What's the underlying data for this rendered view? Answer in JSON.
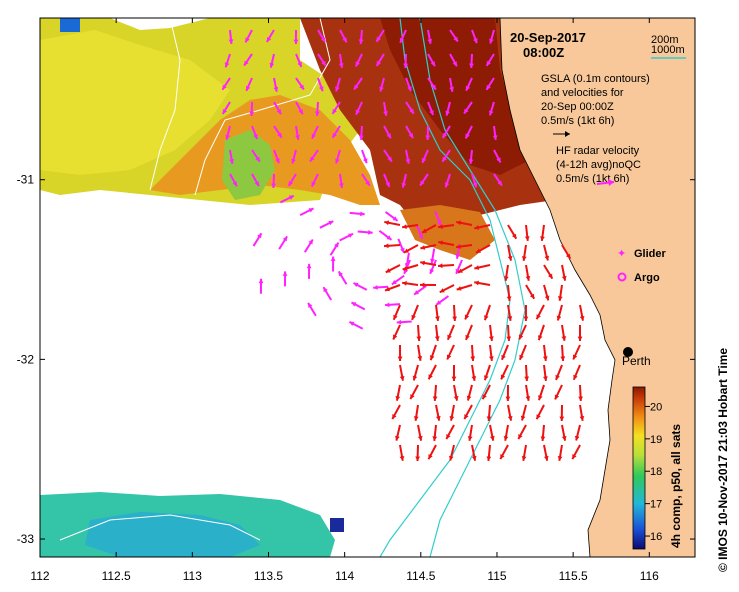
{
  "title": {
    "date": "20-Sep-2017",
    "time": "08:00Z"
  },
  "depth_legend": {
    "shallow": "200m",
    "deep": "1000m"
  },
  "gsla_legend": {
    "line1": "GSLA (0.1m contours)",
    "line2": "and velocities for",
    "line3": "20-Sep 00:00Z",
    "scale": "0.5m/s (1kt 6h)"
  },
  "hf_legend": {
    "line1": "HF radar velocity",
    "line2": "(4-12h avg)noQC",
    "scale": "0.5m/s (1kt 6h)"
  },
  "markers": {
    "glider": "Glider",
    "argo": "Argo"
  },
  "place": {
    "city": "Perth"
  },
  "colorbar": {
    "label": "4h comp, p50, all sats",
    "ticks": [
      "16",
      "17",
      "18",
      "19",
      "20"
    ],
    "range": [
      15.6,
      20.6
    ]
  },
  "axes": {
    "x_ticks": [
      "112",
      "112.5",
      "113",
      "113.5",
      "114",
      "114.5",
      "115",
      "115.5",
      "116"
    ],
    "y_ticks": [
      "-31",
      "-32",
      "-33"
    ],
    "lon_range": [
      112,
      116.3
    ],
    "lat_range": [
      -33.1,
      -30.1
    ]
  },
  "credit": "©  IMOS 10-Nov-2017 21:03 Hobart Time",
  "colors": {
    "land": "#f8c89a",
    "gsla_arrow": "#ff22ff",
    "hf_arrow": "#ee1111",
    "contour_200": "#ffffff",
    "contour_1000": "#33cccc"
  }
}
